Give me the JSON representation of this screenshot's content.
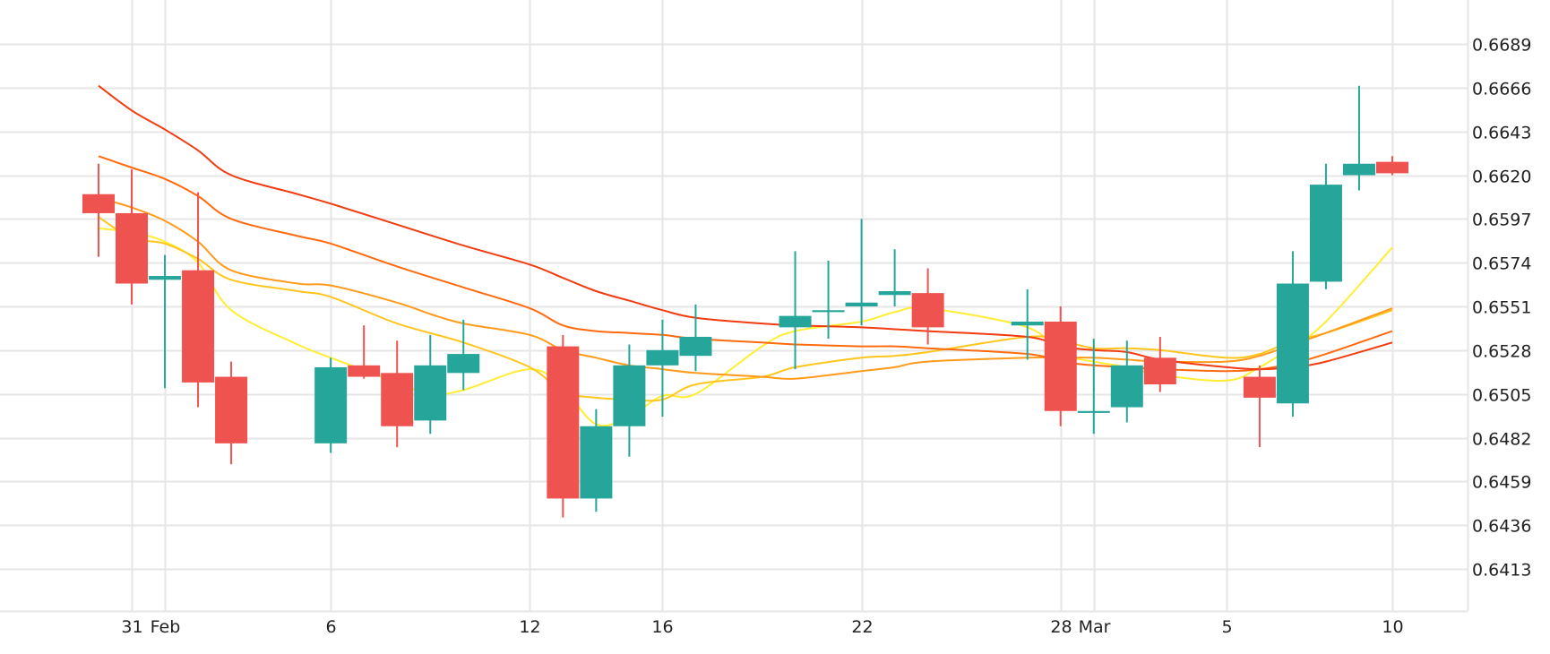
{
  "chart_data": {
    "type": "candlestick",
    "title": "",
    "xlabel": "",
    "ylabel": "",
    "y_ticks": [
      "0.6689",
      "0.6666",
      "0.6643",
      "0.6620",
      "0.6597",
      "0.6574",
      "0.6551",
      "0.6528",
      "0.6505",
      "0.6482",
      "0.6459",
      "0.6436",
      "0.6413"
    ],
    "ylim": [
      0.6391,
      0.6712
    ],
    "x_ticks": [
      {
        "label": "31",
        "date": "2023-01-31"
      },
      {
        "label": "Feb",
        "date": "2023-02-01"
      },
      {
        "label": "6",
        "date": "2023-02-06"
      },
      {
        "label": "12",
        "date": "2023-02-12"
      },
      {
        "label": "16",
        "date": "2023-02-16"
      },
      {
        "label": "22",
        "date": "2023-02-22"
      },
      {
        "label": "28",
        "date": "2023-02-28"
      },
      {
        "label": "Mar",
        "date": "2023-03-01"
      },
      {
        "label": "5",
        "date": "2023-03-05"
      },
      {
        "label": "10",
        "date": "2023-03-10"
      }
    ],
    "xlim": [
      "2023-01-28",
      "2023-03-14"
    ],
    "grid": true,
    "colors": {
      "up": "#26a69a",
      "down": "#ef5350",
      "grid": "#e6e6e6",
      "ma_lines": [
        "#ffee33",
        "#ffc51f",
        "#ff9a1a",
        "#ff6a0f",
        "#f03c10"
      ]
    },
    "candles": [
      {
        "date": "2023-01-30",
        "open": 0.661,
        "high": 0.6626,
        "low": 0.6577,
        "close": 0.66
      },
      {
        "date": "2023-01-31",
        "open": 0.66,
        "high": 0.6623,
        "low": 0.6552,
        "close": 0.6563
      },
      {
        "date": "2023-02-01",
        "open": 0.6565,
        "high": 0.6578,
        "low": 0.6508,
        "close": 0.6567
      },
      {
        "date": "2023-02-02",
        "open": 0.657,
        "high": 0.6611,
        "low": 0.6498,
        "close": 0.6511
      },
      {
        "date": "2023-02-03",
        "open": 0.6514,
        "high": 0.6522,
        "low": 0.6468,
        "close": 0.6479
      },
      {
        "date": "2023-02-06",
        "open": 0.6479,
        "high": 0.6524,
        "low": 0.6474,
        "close": 0.6519
      },
      {
        "date": "2023-02-07",
        "open": 0.652,
        "high": 0.6541,
        "low": 0.6513,
        "close": 0.6514
      },
      {
        "date": "2023-02-08",
        "open": 0.6516,
        "high": 0.6533,
        "low": 0.6477,
        "close": 0.6488
      },
      {
        "date": "2023-02-09",
        "open": 0.6491,
        "high": 0.6536,
        "low": 0.6484,
        "close": 0.652
      },
      {
        "date": "2023-02-10",
        "open": 0.6516,
        "high": 0.6544,
        "low": 0.6507,
        "close": 0.6526
      },
      {
        "date": "2023-02-13",
        "open": 0.653,
        "high": 0.6536,
        "low": 0.644,
        "close": 0.645
      },
      {
        "date": "2023-02-14",
        "open": 0.645,
        "high": 0.6497,
        "low": 0.6443,
        "close": 0.6488
      },
      {
        "date": "2023-02-15",
        "open": 0.6488,
        "high": 0.6531,
        "low": 0.6472,
        "close": 0.652
      },
      {
        "date": "2023-02-16",
        "open": 0.652,
        "high": 0.6544,
        "low": 0.6493,
        "close": 0.6528
      },
      {
        "date": "2023-02-17",
        "open": 0.6525,
        "high": 0.6552,
        "low": 0.6517,
        "close": 0.6535
      },
      {
        "date": "2023-02-20",
        "open": 0.654,
        "high": 0.658,
        "low": 0.6518,
        "close": 0.6546
      },
      {
        "date": "2023-02-21",
        "open": 0.6548,
        "high": 0.6575,
        "low": 0.6534,
        "close": 0.6549
      },
      {
        "date": "2023-02-22",
        "open": 0.6551,
        "high": 0.6597,
        "low": 0.6541,
        "close": 0.6553
      },
      {
        "date": "2023-02-23",
        "open": 0.6557,
        "high": 0.6581,
        "low": 0.6551,
        "close": 0.6559
      },
      {
        "date": "2023-02-24",
        "open": 0.6558,
        "high": 0.6571,
        "low": 0.6531,
        "close": 0.654
      },
      {
        "date": "2023-02-27",
        "open": 0.6541,
        "high": 0.656,
        "low": 0.6523,
        "close": 0.6543
      },
      {
        "date": "2023-02-28",
        "open": 0.6543,
        "high": 0.6551,
        "low": 0.6488,
        "close": 0.6496
      },
      {
        "date": "2023-03-01",
        "open": 0.6495,
        "high": 0.6534,
        "low": 0.6484,
        "close": 0.6496
      },
      {
        "date": "2023-03-02",
        "open": 0.6498,
        "high": 0.6533,
        "low": 0.649,
        "close": 0.652
      },
      {
        "date": "2023-03-03",
        "open": 0.6524,
        "high": 0.6535,
        "low": 0.6506,
        "close": 0.651
      },
      {
        "date": "2023-03-06",
        "open": 0.6514,
        "high": 0.652,
        "low": 0.6477,
        "close": 0.6503
      },
      {
        "date": "2023-03-07",
        "open": 0.65,
        "high": 0.658,
        "low": 0.6493,
        "close": 0.6563
      },
      {
        "date": "2023-03-08",
        "open": 0.6564,
        "high": 0.6626,
        "low": 0.656,
        "close": 0.6615
      },
      {
        "date": "2023-03-09",
        "open": 0.662,
        "high": 0.6667,
        "low": 0.6612,
        "close": 0.6626
      },
      {
        "date": "2023-03-10",
        "open": 0.6627,
        "high": 0.663,
        "low": 0.662,
        "close": 0.6621
      }
    ],
    "series": [
      {
        "color": "#ffee33",
        "points": [
          [
            "2023-01-30",
            0.6592
          ],
          [
            "2023-01-31",
            0.659
          ],
          [
            "2023-02-01",
            0.6585
          ],
          [
            "2023-02-02",
            0.6574
          ],
          [
            "2023-02-03",
            0.6549
          ],
          [
            "2023-02-05",
            0.6531
          ],
          [
            "2023-02-06",
            0.6524
          ],
          [
            "2023-02-08",
            0.6511
          ],
          [
            "2023-02-09",
            0.6505
          ],
          [
            "2023-02-10",
            0.6507
          ],
          [
            "2023-02-12",
            0.6518
          ],
          [
            "2023-02-13",
            0.6508
          ],
          [
            "2023-02-14",
            0.6489
          ],
          [
            "2023-02-15",
            0.6493
          ],
          [
            "2023-02-16",
            0.6504
          ],
          [
            "2023-02-17",
            0.6505
          ],
          [
            "2023-02-19",
            0.653
          ],
          [
            "2023-02-20",
            0.6538
          ],
          [
            "2023-02-22",
            0.6543
          ],
          [
            "2023-02-23",
            0.6548
          ],
          [
            "2023-02-24",
            0.655
          ],
          [
            "2023-02-27",
            0.654
          ],
          [
            "2023-02-28",
            0.6526
          ],
          [
            "2023-03-01",
            0.6522
          ],
          [
            "2023-03-02",
            0.6519
          ],
          [
            "2023-03-03",
            0.6515
          ],
          [
            "2023-03-05",
            0.6512
          ],
          [
            "2023-03-06",
            0.6519
          ],
          [
            "2023-03-07",
            0.653
          ],
          [
            "2023-03-08",
            0.6543
          ],
          [
            "2023-03-10",
            0.6582
          ]
        ]
      },
      {
        "color": "#ffc51f",
        "points": [
          [
            "2023-01-30",
            0.6598
          ],
          [
            "2023-01-31",
            0.6587
          ],
          [
            "2023-02-01",
            0.6584
          ],
          [
            "2023-02-02",
            0.6576
          ],
          [
            "2023-02-03",
            0.6565
          ],
          [
            "2023-02-05",
            0.6559
          ],
          [
            "2023-02-06",
            0.6556
          ],
          [
            "2023-02-08",
            0.6542
          ],
          [
            "2023-02-10",
            0.6532
          ],
          [
            "2023-02-12",
            0.6519
          ],
          [
            "2023-02-13",
            0.6506
          ],
          [
            "2023-02-14",
            0.6503
          ],
          [
            "2023-02-15",
            0.6502
          ],
          [
            "2023-02-16",
            0.6502
          ],
          [
            "2023-02-17",
            0.651
          ],
          [
            "2023-02-19",
            0.6514
          ],
          [
            "2023-02-20",
            0.6519
          ],
          [
            "2023-02-22",
            0.6524
          ],
          [
            "2023-02-23",
            0.6525
          ],
          [
            "2023-02-24",
            0.6527
          ],
          [
            "2023-02-27",
            0.6535
          ],
          [
            "2023-02-28",
            0.6533
          ],
          [
            "2023-03-01",
            0.6529
          ],
          [
            "2023-03-02",
            0.6529
          ],
          [
            "2023-03-03",
            0.6528
          ],
          [
            "2023-03-05",
            0.6524
          ],
          [
            "2023-03-06",
            0.6526
          ],
          [
            "2023-03-07",
            0.6533
          ],
          [
            "2023-03-08",
            0.6537
          ],
          [
            "2023-03-10",
            0.6549
          ]
        ]
      },
      {
        "color": "#ff9a1a",
        "points": [
          [
            "2023-01-30",
            0.6608
          ],
          [
            "2023-01-31",
            0.6603
          ],
          [
            "2023-02-01",
            0.6596
          ],
          [
            "2023-02-02",
            0.6585
          ],
          [
            "2023-02-03",
            0.657
          ],
          [
            "2023-02-05",
            0.6563
          ],
          [
            "2023-02-06",
            0.6562
          ],
          [
            "2023-02-08",
            0.6553
          ],
          [
            "2023-02-09",
            0.6547
          ],
          [
            "2023-02-10",
            0.6542
          ],
          [
            "2023-02-12",
            0.6536
          ],
          [
            "2023-02-13",
            0.6528
          ],
          [
            "2023-02-14",
            0.6524
          ],
          [
            "2023-02-15",
            0.652
          ],
          [
            "2023-02-16",
            0.6518
          ],
          [
            "2023-02-17",
            0.6516
          ],
          [
            "2023-02-19",
            0.6514
          ],
          [
            "2023-02-20",
            0.6513
          ],
          [
            "2023-02-22",
            0.6517
          ],
          [
            "2023-02-23",
            0.6519
          ],
          [
            "2023-02-24",
            0.6522
          ],
          [
            "2023-02-27",
            0.6524
          ],
          [
            "2023-02-28",
            0.6524
          ],
          [
            "2023-03-01",
            0.6524
          ],
          [
            "2023-03-02",
            0.6523
          ],
          [
            "2023-03-03",
            0.6522
          ],
          [
            "2023-03-05",
            0.6522
          ],
          [
            "2023-03-06",
            0.6525
          ],
          [
            "2023-03-07",
            0.6531
          ],
          [
            "2023-03-08",
            0.6537
          ],
          [
            "2023-03-10",
            0.655
          ]
        ]
      },
      {
        "color": "#ff6a0f",
        "points": [
          [
            "2023-01-30",
            0.663
          ],
          [
            "2023-01-31",
            0.6624
          ],
          [
            "2023-02-01",
            0.6618
          ],
          [
            "2023-02-02",
            0.6609
          ],
          [
            "2023-02-03",
            0.6597
          ],
          [
            "2023-02-05",
            0.6588
          ],
          [
            "2023-02-06",
            0.6584
          ],
          [
            "2023-02-08",
            0.6572
          ],
          [
            "2023-02-10",
            0.6561
          ],
          [
            "2023-02-12",
            0.655
          ],
          [
            "2023-02-13",
            0.6541
          ],
          [
            "2023-02-14",
            0.6538
          ],
          [
            "2023-02-15",
            0.6537
          ],
          [
            "2023-02-16",
            0.6536
          ],
          [
            "2023-02-17",
            0.6534
          ],
          [
            "2023-02-19",
            0.6532
          ],
          [
            "2023-02-20",
            0.6531
          ],
          [
            "2023-02-22",
            0.653
          ],
          [
            "2023-02-23",
            0.653
          ],
          [
            "2023-02-24",
            0.6529
          ],
          [
            "2023-02-27",
            0.6526
          ],
          [
            "2023-02-28",
            0.6522
          ],
          [
            "2023-03-01",
            0.652
          ],
          [
            "2023-03-02",
            0.6519
          ],
          [
            "2023-03-03",
            0.6518
          ],
          [
            "2023-03-05",
            0.6517
          ],
          [
            "2023-03-06",
            0.6518
          ],
          [
            "2023-03-07",
            0.6521
          ],
          [
            "2023-03-08",
            0.6526
          ],
          [
            "2023-03-10",
            0.6538
          ]
        ]
      },
      {
        "color": "#f03c10",
        "points": [
          [
            "2023-01-30",
            0.6667
          ],
          [
            "2023-01-31",
            0.6654
          ],
          [
            "2023-02-01",
            0.6644
          ],
          [
            "2023-02-02",
            0.6633
          ],
          [
            "2023-02-03",
            0.662
          ],
          [
            "2023-02-05",
            0.661
          ],
          [
            "2023-02-06",
            0.6605
          ],
          [
            "2023-02-08",
            0.6594
          ],
          [
            "2023-02-10",
            0.6583
          ],
          [
            "2023-02-12",
            0.6573
          ],
          [
            "2023-02-13",
            0.6566
          ],
          [
            "2023-02-14",
            0.6559
          ],
          [
            "2023-02-15",
            0.6554
          ],
          [
            "2023-02-16",
            0.6549
          ],
          [
            "2023-02-17",
            0.6545
          ],
          [
            "2023-02-19",
            0.6542
          ],
          [
            "2023-02-20",
            0.6541
          ],
          [
            "2023-02-22",
            0.654
          ],
          [
            "2023-02-23",
            0.6539
          ],
          [
            "2023-02-24",
            0.6538
          ],
          [
            "2023-02-27",
            0.6535
          ],
          [
            "2023-02-28",
            0.653
          ],
          [
            "2023-03-01",
            0.6528
          ],
          [
            "2023-03-02",
            0.6527
          ],
          [
            "2023-03-03",
            0.6523
          ],
          [
            "2023-03-05",
            0.6519
          ],
          [
            "2023-03-06",
            0.6518
          ],
          [
            "2023-03-07",
            0.6519
          ],
          [
            "2023-03-08",
            0.6522
          ],
          [
            "2023-03-10",
            0.6532
          ]
        ]
      }
    ]
  }
}
